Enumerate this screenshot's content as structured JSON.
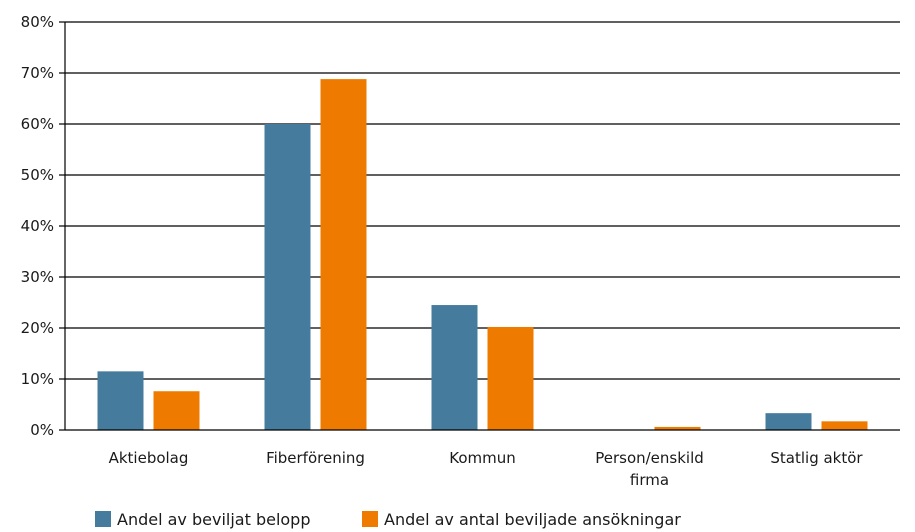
{
  "chart_data": {
    "type": "bar",
    "categories": [
      [
        "Aktiebolag"
      ],
      [
        "Fiberförening"
      ],
      [
        "Kommun"
      ],
      [
        "Person/enskild",
        "firma"
      ],
      [
        "Statlig aktör"
      ]
    ],
    "series": [
      {
        "name": "Andel av beviljat belopp",
        "color": "#457b9d",
        "values": [
          11.5,
          60,
          24.5,
          0.1,
          3.3
        ]
      },
      {
        "name": "Andel av antal beviljade ansökningar",
        "color": "#ef7a00",
        "values": [
          7.6,
          68.8,
          20.2,
          0.6,
          1.7
        ]
      }
    ],
    "yticks": [
      "0%",
      "10%",
      "20%",
      "30%",
      "40%",
      "50%",
      "60%",
      "70%",
      "80%"
    ],
    "ylim": [
      0,
      80
    ],
    "grid": true,
    "legend_position": "bottom-left"
  }
}
